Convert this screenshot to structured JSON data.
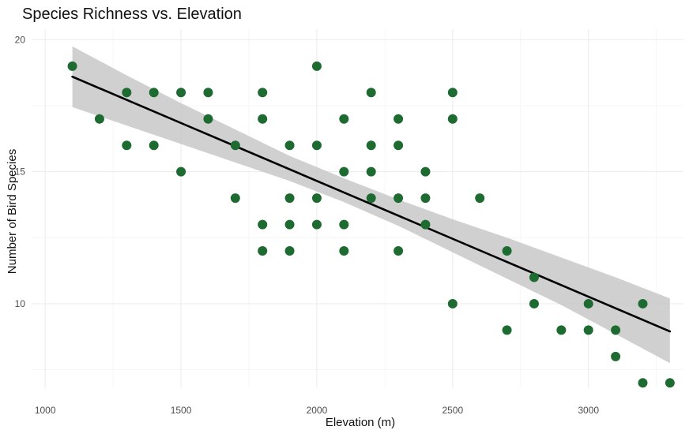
{
  "chart_data": {
    "type": "scatter",
    "title": "Species Richness vs. Elevation",
    "xlabel": "Elevation (m)",
    "ylabel": "Number of Bird Species",
    "xlim": [
      950,
      3350
    ],
    "ylim": [
      6.8,
      20.4
    ],
    "x_ticks": [
      1000,
      1500,
      2000,
      2500,
      3000
    ],
    "y_ticks": [
      10,
      15,
      20
    ],
    "grid": true,
    "legend": "none",
    "colors": {
      "points": "#1e6b32",
      "trend_line": "#000000",
      "confidence_band": "#c8c8c8"
    },
    "points": [
      {
        "x": 1100,
        "y": 19
      },
      {
        "x": 1200,
        "y": 17
      },
      {
        "x": 1300,
        "y": 18
      },
      {
        "x": 1300,
        "y": 16
      },
      {
        "x": 1400,
        "y": 18
      },
      {
        "x": 1400,
        "y": 16
      },
      {
        "x": 1500,
        "y": 18
      },
      {
        "x": 1500,
        "y": 15
      },
      {
        "x": 1600,
        "y": 18
      },
      {
        "x": 1600,
        "y": 17
      },
      {
        "x": 1700,
        "y": 16
      },
      {
        "x": 1700,
        "y": 14
      },
      {
        "x": 1800,
        "y": 18
      },
      {
        "x": 1800,
        "y": 17
      },
      {
        "x": 1800,
        "y": 13
      },
      {
        "x": 1800,
        "y": 12
      },
      {
        "x": 1900,
        "y": 16
      },
      {
        "x": 1900,
        "y": 14
      },
      {
        "x": 1900,
        "y": 13
      },
      {
        "x": 1900,
        "y": 12
      },
      {
        "x": 2000,
        "y": 19
      },
      {
        "x": 2000,
        "y": 16
      },
      {
        "x": 2000,
        "y": 14
      },
      {
        "x": 2000,
        "y": 13
      },
      {
        "x": 2100,
        "y": 17
      },
      {
        "x": 2100,
        "y": 15
      },
      {
        "x": 2100,
        "y": 13
      },
      {
        "x": 2100,
        "y": 12
      },
      {
        "x": 2200,
        "y": 18
      },
      {
        "x": 2200,
        "y": 16
      },
      {
        "x": 2200,
        "y": 15
      },
      {
        "x": 2200,
        "y": 14
      },
      {
        "x": 2300,
        "y": 17
      },
      {
        "x": 2300,
        "y": 16
      },
      {
        "x": 2300,
        "y": 14
      },
      {
        "x": 2300,
        "y": 12
      },
      {
        "x": 2400,
        "y": 15
      },
      {
        "x": 2400,
        "y": 14
      },
      {
        "x": 2400,
        "y": 13
      },
      {
        "x": 2500,
        "y": 18
      },
      {
        "x": 2500,
        "y": 17
      },
      {
        "x": 2500,
        "y": 10
      },
      {
        "x": 2600,
        "y": 14
      },
      {
        "x": 2700,
        "y": 12
      },
      {
        "x": 2700,
        "y": 9
      },
      {
        "x": 2800,
        "y": 11
      },
      {
        "x": 2800,
        "y": 10
      },
      {
        "x": 2900,
        "y": 9
      },
      {
        "x": 3000,
        "y": 10
      },
      {
        "x": 3000,
        "y": 9
      },
      {
        "x": 3100,
        "y": 9
      },
      {
        "x": 3100,
        "y": 8
      },
      {
        "x": 3200,
        "y": 10
      },
      {
        "x": 3200,
        "y": 7
      },
      {
        "x": 3300,
        "y": 7
      }
    ],
    "trend_line": {
      "x": [
        1100,
        3300
      ],
      "y": [
        18.6,
        8.95
      ]
    },
    "confidence_band": {
      "x": [
        1100,
        1300,
        1500,
        1700,
        1900,
        2100,
        2300,
        2500,
        2700,
        2900,
        3100,
        3300
      ],
      "lower": [
        17.45,
        16.75,
        16.05,
        15.35,
        14.65,
        13.85,
        12.95,
        11.95,
        10.95,
        9.95,
        8.85,
        7.75
      ],
      "upper": [
        19.75,
        18.65,
        17.6,
        16.6,
        15.6,
        14.75,
        13.95,
        13.2,
        12.5,
        11.75,
        11.0,
        10.2
      ]
    }
  }
}
